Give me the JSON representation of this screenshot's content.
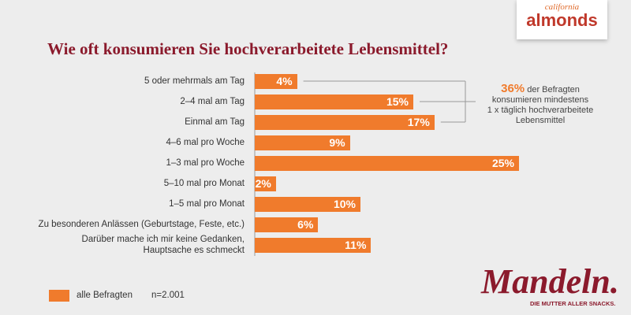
{
  "chart_data": {
    "type": "bar",
    "orientation": "horizontal",
    "title": "Wie oft konsumieren Sie hochverarbeitete Lebensmittel?",
    "categories": [
      "5 oder mehrmals am Tag",
      "2–4 mal am Tag",
      "Einmal am Tag",
      "4–6 mal pro Woche",
      "1–3 mal pro Woche",
      "5–10 mal pro Monat",
      "1–5 mal pro Monat",
      "Zu besonderen Anlässen (Geburtstage, Feste, etc.)",
      "Darüber mache ich mir keine Gedanken,\nHauptsache es schmeckt"
    ],
    "series": [
      {
        "name": "alle Befragten",
        "color": "#f07b2c",
        "values": [
          4,
          15,
          17,
          9,
          25,
          2,
          10,
          6,
          11
        ],
        "value_labels": [
          "4%",
          "15%",
          "17%",
          "9%",
          "25%",
          "2%",
          "10%",
          "6%",
          "11%"
        ]
      }
    ],
    "note": "n=2.001",
    "annotation": {
      "highlight": "36%",
      "text": " der Befragten\nkonsumieren mindestens\n1 x täglich hochverarbeitete\nLebensmittel"
    }
  },
  "logos": {
    "top": [
      "california",
      "almonds"
    ],
    "bottom": [
      "Mandeln.",
      "DIE MUTTER ALLER SNACKS."
    ]
  }
}
